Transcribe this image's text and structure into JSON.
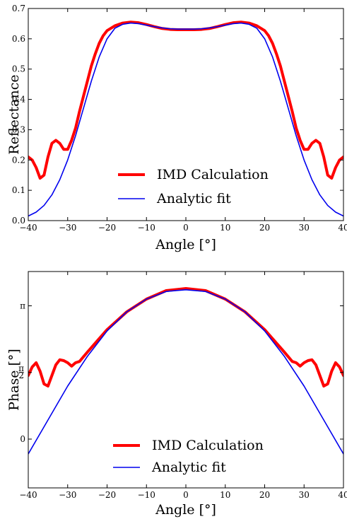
{
  "chart_data": [
    {
      "type": "line",
      "xlabel": "Angle [°]",
      "ylabel": "Reflectance",
      "xlim": [
        -40,
        40
      ],
      "ylim": [
        0.0,
        0.7
      ],
      "x_ticks": [
        -40,
        -30,
        -20,
        -10,
        0,
        10,
        20,
        30,
        40
      ],
      "x_tick_labels": [
        "−40",
        "−30",
        "−20",
        "−10",
        "0",
        "10",
        "20",
        "30",
        "40"
      ],
      "y_ticks": [
        0.0,
        0.1,
        0.2,
        0.3,
        0.4,
        0.5,
        0.6,
        0.7
      ],
      "y_tick_labels": [
        "0.0",
        "0.1",
        "0.2",
        "0.3",
        "0.4",
        "0.5",
        "0.6",
        "0.7"
      ],
      "grid": false,
      "legend_position": "lower-center",
      "series": [
        {
          "name": "IMD Calculation",
          "color": "#ff0000",
          "x": [
            -40,
            -39,
            -38,
            -37,
            -36,
            -35,
            -34,
            -33,
            -32,
            -31,
            -30,
            -29,
            -28,
            -27,
            -26,
            -25,
            -24,
            -23,
            -22,
            -21,
            -20,
            -18,
            -16,
            -14,
            -12,
            -10,
            -8,
            -6,
            -4,
            -2,
            0,
            2,
            4,
            6,
            8,
            10,
            12,
            14,
            16,
            18,
            20,
            21,
            22,
            23,
            24,
            25,
            26,
            27,
            28,
            29,
            30,
            31,
            32,
            33,
            34,
            35,
            36,
            37,
            38,
            39,
            40
          ],
          "y": [
            0.21,
            0.2,
            0.175,
            0.14,
            0.15,
            0.21,
            0.255,
            0.265,
            0.255,
            0.235,
            0.235,
            0.265,
            0.305,
            0.36,
            0.41,
            0.46,
            0.51,
            0.55,
            0.585,
            0.61,
            0.627,
            0.643,
            0.652,
            0.655,
            0.653,
            0.647,
            0.64,
            0.634,
            0.631,
            0.63,
            0.63,
            0.63,
            0.631,
            0.634,
            0.64,
            0.647,
            0.653,
            0.655,
            0.652,
            0.643,
            0.627,
            0.61,
            0.585,
            0.55,
            0.51,
            0.46,
            0.41,
            0.36,
            0.305,
            0.265,
            0.235,
            0.235,
            0.255,
            0.265,
            0.255,
            0.21,
            0.15,
            0.14,
            0.175,
            0.2,
            0.21
          ]
        },
        {
          "name": "Analytic fit",
          "color": "#0000ee",
          "x": [
            -40,
            -38,
            -36,
            -34,
            -32,
            -30,
            -28,
            -26,
            -24,
            -22,
            -20,
            -18,
            -16,
            -14,
            -12,
            -10,
            -8,
            -6,
            -4,
            -2,
            0,
            2,
            4,
            6,
            8,
            10,
            12,
            14,
            16,
            18,
            20,
            22,
            24,
            26,
            28,
            30,
            32,
            34,
            36,
            38,
            40
          ],
          "y": [
            0.015,
            0.028,
            0.05,
            0.085,
            0.135,
            0.2,
            0.28,
            0.37,
            0.46,
            0.54,
            0.6,
            0.635,
            0.648,
            0.652,
            0.65,
            0.645,
            0.64,
            0.636,
            0.633,
            0.632,
            0.632,
            0.632,
            0.633,
            0.636,
            0.64,
            0.645,
            0.65,
            0.652,
            0.648,
            0.635,
            0.6,
            0.54,
            0.46,
            0.37,
            0.28,
            0.2,
            0.135,
            0.085,
            0.05,
            0.028,
            0.015
          ]
        }
      ]
    },
    {
      "type": "line",
      "xlabel": "Angle [°]",
      "ylabel": "Phase [°]",
      "xlim": [
        -40,
        40
      ],
      "ylim": [
        -1.15,
        3.95
      ],
      "x_ticks": [
        -40,
        -30,
        -20,
        -10,
        0,
        10,
        20,
        30,
        40
      ],
      "x_tick_labels": [
        "−40",
        "−30",
        "−20",
        "−10",
        "0",
        "10",
        "20",
        "30",
        "40"
      ],
      "y_ticks": [
        0,
        1.5708,
        3.1416
      ],
      "y_tick_labels": [
        "0",
        "π/2",
        "π"
      ],
      "grid": false,
      "legend_position": "lower-center",
      "series": [
        {
          "name": "IMD Calculation",
          "color": "#ff0000",
          "x": [
            -40,
            -39,
            -38,
            -37,
            -36,
            -35,
            -34,
            -33,
            -32,
            -31,
            -30,
            -29,
            -28,
            -27,
            -25,
            -20,
            -15,
            -10,
            -5,
            0,
            5,
            10,
            15,
            20,
            25,
            27,
            28,
            29,
            30,
            31,
            32,
            33,
            34,
            35,
            36,
            37,
            38,
            39,
            40
          ],
          "y": [
            1.5,
            1.7,
            1.8,
            1.6,
            1.3,
            1.25,
            1.5,
            1.75,
            1.87,
            1.85,
            1.8,
            1.72,
            1.8,
            1.83,
            2.05,
            2.58,
            3.0,
            3.3,
            3.5,
            3.55,
            3.5,
            3.3,
            3.0,
            2.58,
            2.05,
            1.83,
            1.8,
            1.72,
            1.8,
            1.85,
            1.87,
            1.75,
            1.5,
            1.25,
            1.3,
            1.6,
            1.8,
            1.7,
            1.5
          ]
        },
        {
          "name": "Analytic fit",
          "color": "#0000ee",
          "x": [
            -40,
            -35,
            -30,
            -25,
            -20,
            -15,
            -10,
            -5,
            0,
            5,
            10,
            15,
            20,
            25,
            30,
            35,
            40
          ],
          "y": [
            -0.35,
            0.45,
            1.25,
            1.95,
            2.55,
            3.0,
            3.3,
            3.48,
            3.52,
            3.48,
            3.3,
            3.0,
            2.55,
            1.95,
            1.25,
            0.45,
            -0.35
          ]
        }
      ]
    }
  ]
}
